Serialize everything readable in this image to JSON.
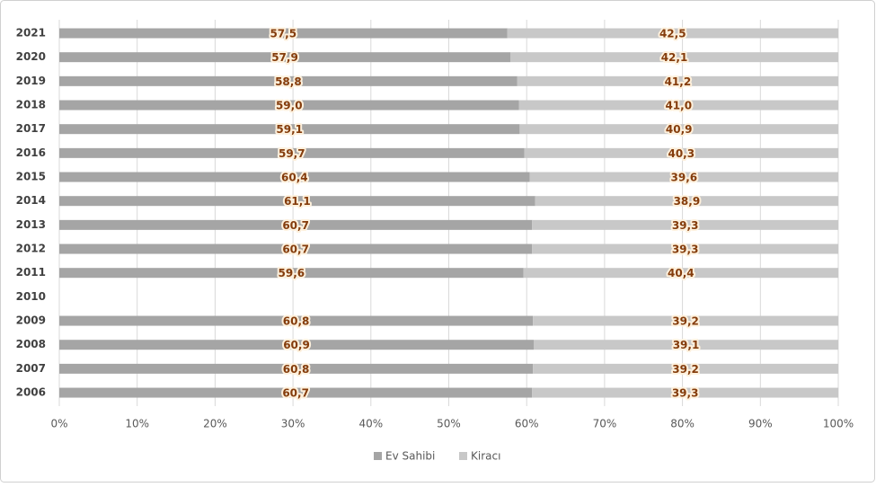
{
  "chart_data": {
    "type": "stacked-bar-horizontal",
    "categories": [
      "2021",
      "2020",
      "2019",
      "2018",
      "2017",
      "2016",
      "2015",
      "2014",
      "2013",
      "2012",
      "2011",
      "2010",
      "2009",
      "2008",
      "2007",
      "2006"
    ],
    "series": [
      {
        "name": "Ev Sahibi",
        "color": "#a5a5a5",
        "values": [
          57.5,
          57.9,
          58.8,
          59.0,
          59.1,
          59.7,
          60.4,
          61.1,
          60.7,
          60.7,
          59.6,
          null,
          60.8,
          60.9,
          60.8,
          60.7
        ],
        "value_labels": [
          "57,5",
          "57,9",
          "58,8",
          "59,0",
          "59,1",
          "59,7",
          "60,4",
          "61,1",
          "60,7",
          "60,7",
          "59,6",
          null,
          "60,8",
          "60,9",
          "60,8",
          "60,7"
        ]
      },
      {
        "name": "Kiracı",
        "color": "#c8c8c8",
        "values": [
          42.5,
          42.1,
          41.2,
          41.0,
          40.9,
          40.3,
          39.6,
          38.9,
          39.3,
          39.3,
          40.4,
          null,
          39.2,
          39.1,
          39.2,
          39.3
        ],
        "value_labels": [
          "42,5",
          "42,1",
          "41,2",
          "41,0",
          "40,9",
          "40,3",
          "39,6",
          "38,9",
          "39,3",
          "39,3",
          "40,4",
          null,
          "39,2",
          "39,1",
          "39,2",
          "39,3"
        ]
      }
    ],
    "xlim": [
      0,
      100
    ],
    "xticks": [
      {
        "value": 0,
        "label": "0%"
      },
      {
        "value": 10,
        "label": "10%"
      },
      {
        "value": 20,
        "label": "20%"
      },
      {
        "value": 30,
        "label": "30%"
      },
      {
        "value": 40,
        "label": "40%"
      },
      {
        "value": 50,
        "label": "50%"
      },
      {
        "value": 60,
        "label": "60%"
      },
      {
        "value": 70,
        "label": "70%"
      },
      {
        "value": 80,
        "label": "80%"
      },
      {
        "value": 90,
        "label": "90%"
      },
      {
        "value": 100,
        "label": "100%"
      }
    ],
    "grid": true,
    "legend": "bottom"
  }
}
